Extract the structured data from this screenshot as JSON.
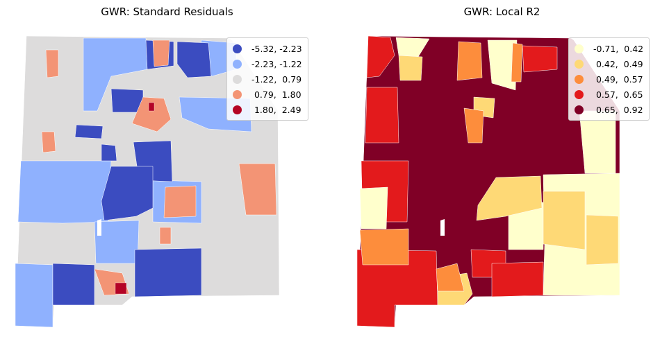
{
  "panels": [
    {
      "title": "GWR: Standard Residuals",
      "legend": [
        {
          "label": "-5.32, -2.23",
          "color": "#3b4cc0"
        },
        {
          "label": "-2.23, -1.22",
          "color": "#8fb1fe"
        },
        {
          "label": "-1.22,  0.79",
          "color": "#dddcdc"
        },
        {
          "label": " 0.79,  1.80",
          "color": "#f39475"
        },
        {
          "label": " 1.80,  2.49",
          "color": "#b40426"
        }
      ]
    },
    {
      "title": "GWR: Local R2",
      "legend": [
        {
          "label": "-0.71,  0.42",
          "color": "#ffffcc"
        },
        {
          "label": " 0.42,  0.49",
          "color": "#fed976"
        },
        {
          "label": " 0.49,  0.57",
          "color": "#fd8d3c"
        },
        {
          "label": " 0.57,  0.65",
          "color": "#e31a1c"
        },
        {
          "label": " 0.65,  0.92",
          "color": "#800026"
        }
      ]
    }
  ]
}
